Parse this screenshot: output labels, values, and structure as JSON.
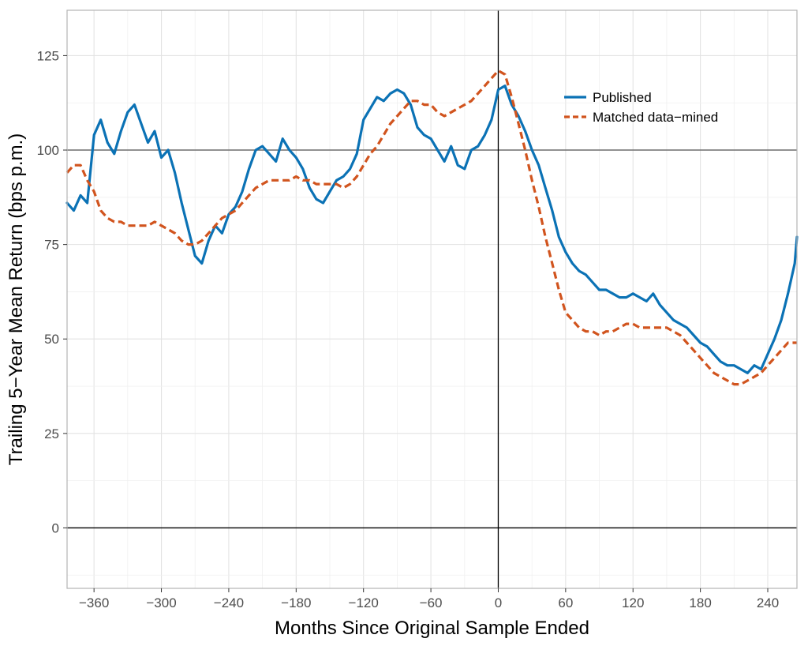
{
  "chart_data": {
    "type": "line",
    "xlabel": "Months Since Original Sample Ended",
    "ylabel": "Trailing 5−Year Mean Return (bps p.m.)",
    "xlim": [
      -384,
      266
    ],
    "ylim": [
      -16,
      137
    ],
    "x_ticks": [
      -360,
      -300,
      -240,
      -180,
      -120,
      -60,
      0,
      60,
      120,
      180,
      240
    ],
    "x_tick_labels": [
      "−360",
      "−300",
      "−240",
      "−180",
      "−120",
      "−60",
      "0",
      "60",
      "120",
      "180",
      "240"
    ],
    "y_ticks": [
      0,
      25,
      50,
      75,
      100,
      125
    ],
    "y_tick_labels": [
      "0",
      "25",
      "50",
      "75",
      "100",
      "125"
    ],
    "reference_lines": {
      "horizontal": [
        0,
        100
      ],
      "vertical": [
        0
      ]
    },
    "grid": true,
    "legend_position": "top-right",
    "series": [
      {
        "name": "Published",
        "color": "#0b72b5",
        "style": "solid",
        "x": [
          -384,
          -378,
          -372,
          -366,
          -360,
          -354,
          -348,
          -342,
          -336,
          -330,
          -324,
          -318,
          -312,
          -306,
          -300,
          -294,
          -288,
          -282,
          -276,
          -270,
          -264,
          -258,
          -252,
          -246,
          -240,
          -234,
          -228,
          -222,
          -216,
          -210,
          -204,
          -198,
          -192,
          -186,
          -180,
          -174,
          -168,
          -162,
          -156,
          -150,
          -144,
          -138,
          -132,
          -126,
          -120,
          -114,
          -108,
          -102,
          -96,
          -90,
          -84,
          -78,
          -72,
          -66,
          -60,
          -54,
          -48,
          -42,
          -36,
          -30,
          -24,
          -18,
          -12,
          -6,
          0,
          6,
          12,
          18,
          24,
          30,
          36,
          42,
          48,
          54,
          60,
          66,
          72,
          78,
          84,
          90,
          96,
          102,
          108,
          114,
          120,
          126,
          132,
          138,
          144,
          150,
          156,
          162,
          168,
          174,
          180,
          186,
          192,
          198,
          204,
          210,
          216,
          222,
          228,
          234,
          240,
          246,
          252,
          258,
          264,
          266
        ],
        "y": [
          86,
          84,
          88,
          86,
          104,
          108,
          102,
          99,
          105,
          110,
          112,
          107,
          102,
          105,
          98,
          100,
          94,
          86,
          79,
          72,
          70,
          76,
          80,
          78,
          83,
          85,
          89,
          95,
          100,
          101,
          99,
          97,
          103,
          100,
          98,
          95,
          90,
          87,
          86,
          89,
          92,
          93,
          95,
          99,
          108,
          111,
          114,
          113,
          115,
          116,
          115,
          112,
          106,
          104,
          103,
          100,
          97,
          101,
          96,
          95,
          100,
          101,
          104,
          108,
          116,
          117,
          112,
          109,
          105,
          100,
          96,
          90,
          84,
          77,
          73,
          70,
          68,
          67,
          65,
          63,
          63,
          62,
          61,
          61,
          62,
          61,
          60,
          62,
          59,
          57,
          55,
          54,
          53,
          51,
          49,
          48,
          46,
          44,
          43,
          43,
          42,
          41,
          43,
          42,
          46,
          50,
          55,
          62,
          70,
          77
        ]
      },
      {
        "name": "Matched data−mined",
        "color": "#d1541e",
        "style": "dashed",
        "x": [
          -384,
          -378,
          -372,
          -366,
          -360,
          -354,
          -348,
          -342,
          -336,
          -330,
          -324,
          -318,
          -312,
          -306,
          -300,
          -294,
          -288,
          -282,
          -276,
          -270,
          -264,
          -258,
          -252,
          -246,
          -240,
          -234,
          -228,
          -222,
          -216,
          -210,
          -204,
          -198,
          -192,
          -186,
          -180,
          -174,
          -168,
          -162,
          -156,
          -150,
          -144,
          -138,
          -132,
          -126,
          -120,
          -114,
          -108,
          -102,
          -96,
          -90,
          -84,
          -78,
          -72,
          -66,
          -60,
          -54,
          -48,
          -42,
          -36,
          -30,
          -24,
          -18,
          -12,
          -6,
          0,
          6,
          12,
          18,
          24,
          30,
          36,
          42,
          48,
          54,
          60,
          66,
          72,
          78,
          84,
          90,
          96,
          102,
          108,
          114,
          120,
          126,
          132,
          138,
          144,
          150,
          156,
          162,
          168,
          174,
          180,
          186,
          192,
          198,
          204,
          210,
          216,
          222,
          228,
          234,
          240,
          246,
          252,
          258,
          264,
          266
        ],
        "y": [
          94,
          96,
          96,
          92,
          89,
          84,
          82,
          81,
          81,
          80,
          80,
          80,
          80,
          81,
          80,
          79,
          78,
          76,
          75,
          75,
          76,
          78,
          80,
          82,
          83,
          84,
          86,
          88,
          90,
          91,
          92,
          92,
          92,
          92,
          93,
          92,
          92,
          91,
          91,
          91,
          91,
          90,
          91,
          93,
          96,
          99,
          101,
          104,
          107,
          109,
          111,
          113,
          113,
          112,
          112,
          110,
          109,
          110,
          111,
          112,
          113,
          115,
          117,
          119,
          121,
          120,
          114,
          107,
          100,
          92,
          85,
          77,
          70,
          63,
          57,
          55,
          53,
          52,
          52,
          51,
          52,
          52,
          53,
          54,
          54,
          53,
          53,
          53,
          53,
          53,
          52,
          51,
          49,
          47,
          45,
          43,
          41,
          40,
          39,
          38,
          38,
          39,
          40,
          41,
          43,
          45,
          47,
          49,
          49,
          49
        ]
      }
    ]
  }
}
